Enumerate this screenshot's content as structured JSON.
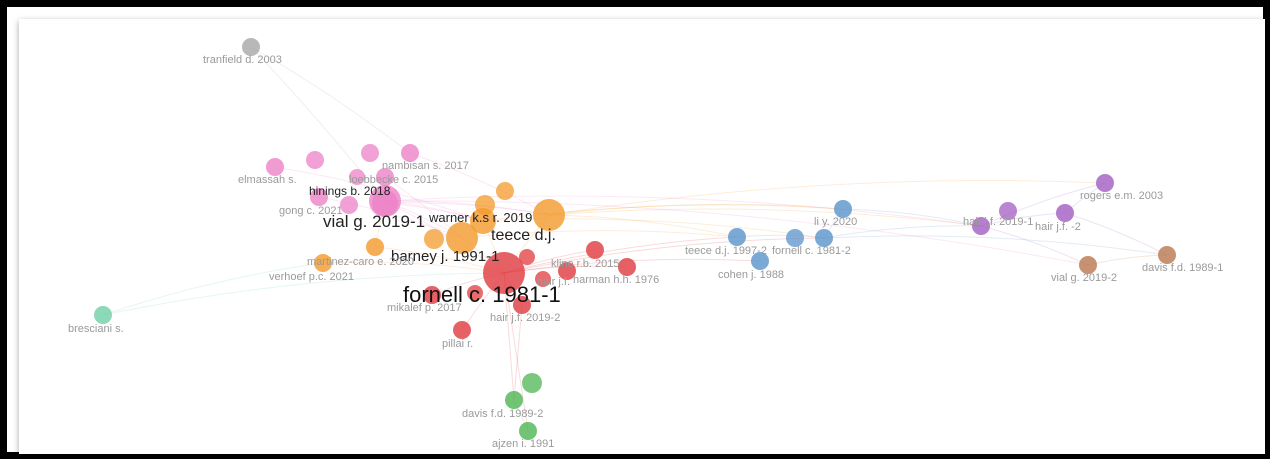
{
  "network": {
    "cluster_colors": {
      "red": "#e0393e",
      "orange": "#f39a2b",
      "pink": "#ec82c7",
      "blue": "#5a93cc",
      "purple": "#a35cc2",
      "brown": "#b9774e",
      "green": "#4db553",
      "teal": "#6fcfa6",
      "gray": "#a6a6a6"
    },
    "nodes": [
      {
        "id": "tranfield",
        "label": "tranfield d. 2003",
        "cluster": "gray",
        "size": "small"
      },
      {
        "id": "nambisan",
        "label": "nambisan s. 2017",
        "cluster": "pink",
        "size": "small"
      },
      {
        "id": "elmassah",
        "label": "elmassah s.",
        "cluster": "pink",
        "size": "small"
      },
      {
        "id": "loebbecke",
        "label": "loebbecke c. 2015",
        "cluster": "pink",
        "size": "small"
      },
      {
        "id": "hinings",
        "label": "hinings b. 2018",
        "cluster": "pink",
        "size": "medium"
      },
      {
        "id": "gong",
        "label": "gong c. 2021",
        "cluster": "pink",
        "size": "small"
      },
      {
        "id": "vial1",
        "label": "vial g. 2019-1",
        "cluster": "pink",
        "size": "large"
      },
      {
        "id": "warner",
        "label": "warner k.s r. 2019",
        "cluster": "orange",
        "size": "medium"
      },
      {
        "id": "teece1",
        "label": "teece d.j.",
        "cluster": "orange",
        "size": "large"
      },
      {
        "id": "barney",
        "label": "barney j. 1991-1",
        "cluster": "orange",
        "size": "large"
      },
      {
        "id": "martinez",
        "label": "martinez-caro e. 2020",
        "cluster": "orange",
        "size": "small"
      },
      {
        "id": "verhoef",
        "label": "verhoef p.c. 2021",
        "cluster": "orange",
        "size": "small"
      },
      {
        "id": "fornell1",
        "label": "fornell c. 1981-1",
        "cluster": "red",
        "size": "xlarge"
      },
      {
        "id": "kline",
        "label": "kline r.b. 2015",
        "cluster": "red",
        "size": "small"
      },
      {
        "id": "harman",
        "label": "harman h.h. 1976",
        "cluster": "red",
        "size": "small"
      },
      {
        "id": "hairj",
        "label": "hair j.f.",
        "cluster": "red",
        "size": "small"
      },
      {
        "id": "mikalef",
        "label": "mikalef p. 2017",
        "cluster": "red",
        "size": "small"
      },
      {
        "id": "hair2",
        "label": "hair j.f. 2019-2",
        "cluster": "red",
        "size": "small"
      },
      {
        "id": "pillai",
        "label": "pillai r.",
        "cluster": "red",
        "size": "small"
      },
      {
        "id": "teece2",
        "label": "teece d.j. 1997-2",
        "cluster": "blue",
        "size": "small"
      },
      {
        "id": "fornell2",
        "label": "fornell c. 1981-2",
        "cluster": "blue",
        "size": "small"
      },
      {
        "id": "liy",
        "label": "li y. 2020",
        "cluster": "blue",
        "size": "small"
      },
      {
        "id": "cohen",
        "label": "cohen j. 1988",
        "cluster": "blue",
        "size": "small"
      },
      {
        "id": "hair3",
        "label": "hair j.f. 2019-1",
        "cluster": "purple",
        "size": "small"
      },
      {
        "id": "hairjf2",
        "label": "hair j.f. -2",
        "cluster": "purple",
        "size": "small"
      },
      {
        "id": "rogers",
        "label": "rogers e.m. 2003",
        "cluster": "purple",
        "size": "small"
      },
      {
        "id": "vial2",
        "label": "vial g. 2019-2",
        "cluster": "brown",
        "size": "small"
      },
      {
        "id": "davis1",
        "label": "davis f.d. 1989-1",
        "cluster": "brown",
        "size": "small"
      },
      {
        "id": "bresciani",
        "label": "bresciani s.",
        "cluster": "teal",
        "size": "small"
      },
      {
        "id": "davis2",
        "label": "davis f.d. 1989-2",
        "cluster": "green",
        "size": "small"
      },
      {
        "id": "ajzen",
        "label": "ajzen i. 1991",
        "cluster": "green",
        "size": "small"
      }
    ]
  }
}
